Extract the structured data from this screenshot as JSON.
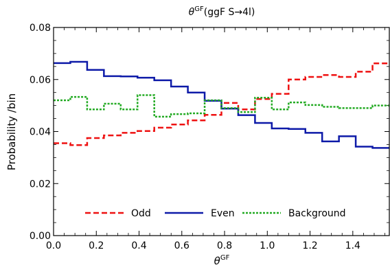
{
  "chart_data": {
    "type": "line",
    "step": true,
    "title_symbol": "θ",
    "title_sup": "GF",
    "title_text": "(ggF S→4l)",
    "xlabel_symbol": "θ",
    "xlabel_sup": "GF",
    "ylabel": "Probability /bin",
    "xlim": [
      0,
      1.5708
    ],
    "ylim": [
      0,
      0.08
    ],
    "xticks": [
      0.0,
      0.2,
      0.4,
      0.6,
      0.8,
      1.0,
      1.2,
      1.4
    ],
    "xtick_labels": [
      "0.0",
      "0.2",
      "0.4",
      "0.6",
      "0.8",
      "1.0",
      "1.2",
      "1.4"
    ],
    "yticks": [
      0.0,
      0.02,
      0.04,
      0.06,
      0.08
    ],
    "ytick_labels": [
      "0.00",
      "0.02",
      "0.04",
      "0.06",
      "0.08"
    ],
    "grid": false,
    "legend_position": "bottom-center",
    "bin_edges": [
      0.0,
      0.0785,
      0.1571,
      0.2356,
      0.3142,
      0.3927,
      0.4712,
      0.5498,
      0.6283,
      0.7069,
      0.7854,
      0.8639,
      0.9425,
      1.021,
      1.0996,
      1.1781,
      1.2566,
      1.3352,
      1.4137,
      1.4923,
      1.5708
    ],
    "series": [
      {
        "name": "Odd",
        "color": "#ee1111",
        "dash": "dashed",
        "values": [
          0.0355,
          0.0348,
          0.0375,
          0.0385,
          0.0395,
          0.0402,
          0.0415,
          0.0427,
          0.0443,
          0.0464,
          0.051,
          0.0485,
          0.0525,
          0.0545,
          0.06,
          0.061,
          0.0617,
          0.061,
          0.063,
          0.0662
        ]
      },
      {
        "name": "Even",
        "color": "#0d1aa8",
        "dash": "solid",
        "values": [
          0.0663,
          0.0668,
          0.0637,
          0.0613,
          0.0612,
          0.0607,
          0.0597,
          0.0573,
          0.055,
          0.0518,
          0.0488,
          0.0463,
          0.0433,
          0.0412,
          0.041,
          0.0395,
          0.0362,
          0.0382,
          0.0342,
          0.0337
        ]
      },
      {
        "name": "Background",
        "color": "#22aa22",
        "dash": "dotted",
        "values": [
          0.052,
          0.0533,
          0.0485,
          0.0507,
          0.0485,
          0.054,
          0.0457,
          0.0467,
          0.047,
          0.052,
          0.049,
          0.0475,
          0.053,
          0.0485,
          0.0512,
          0.0502,
          0.0495,
          0.049,
          0.049,
          0.05
        ]
      }
    ]
  }
}
